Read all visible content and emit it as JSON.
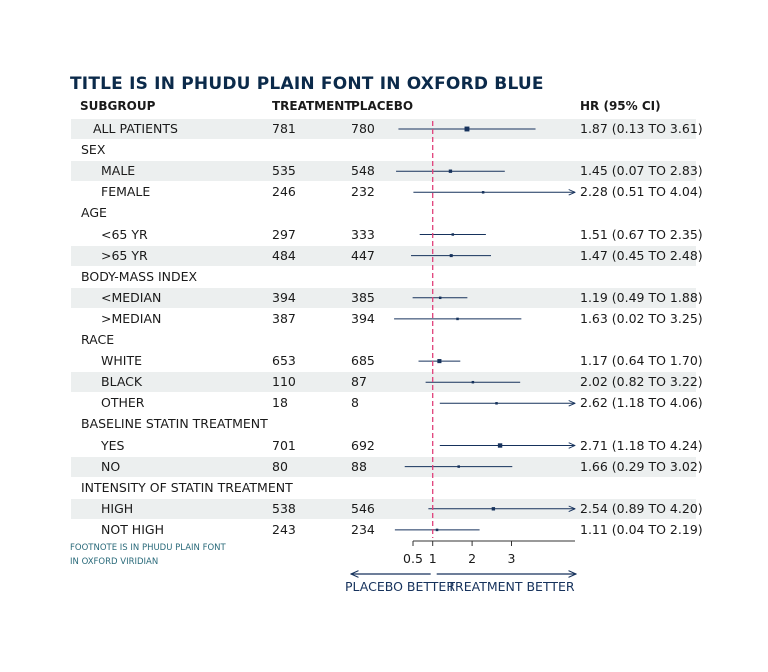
{
  "title": "TITLE IS IN PHUDU PLAIN FONT IN OXFORD BLUE",
  "headers": {
    "subgroup": "SUBGROUP",
    "treatment": "TREATMENT",
    "placebo": "PLACEBO",
    "hr": "HR (95% CI)"
  },
  "footnote": [
    "FOOTNOTE IS IN PHUDU PLAIN FONT",
    "IN OXFORD VIRIDIAN"
  ],
  "colors": {
    "title": "#0b2a4a",
    "line": "#16325c",
    "refline": "#e0407a",
    "band": "#ecefef",
    "footnote": "#2a6a7a"
  },
  "chart_data": {
    "type": "forest",
    "title": "TITLE IS IN PHUDU PLAIN FONT IN OXFORD BLUE",
    "xlabel_left": "PLACEBO BETTER",
    "xlabel_right": "TREATMENT BETTER",
    "x_ticks": [
      "0.5",
      "1",
      "2",
      "3"
    ],
    "x_tick_values": [
      0.5,
      1,
      2,
      3
    ],
    "xlim": [
      -0.5,
      4.0
    ],
    "reference_line": 1,
    "rows": [
      {
        "label": "ALL PATIENTS",
        "level": 1,
        "treatment": "781",
        "placebo": "780",
        "hr": 1.87,
        "lo": 0.13,
        "hi": 3.61,
        "hr_text": "1.87 (0.13 TO 3.61)",
        "shaded": true
      },
      {
        "label": "SEX",
        "level": 0,
        "header": true
      },
      {
        "label": "MALE",
        "level": 2,
        "treatment": "535",
        "placebo": "548",
        "hr": 1.45,
        "lo": 0.07,
        "hi": 2.83,
        "hr_text": "1.45 (0.07 TO 2.83)",
        "shaded": true
      },
      {
        "label": "FEMALE",
        "level": 2,
        "treatment": "246",
        "placebo": "232",
        "hr": 2.28,
        "lo": 0.51,
        "hi": 4.04,
        "hr_text": "2.28 (0.51 TO 4.04)",
        "shaded": false,
        "arrow": true
      },
      {
        "label": "AGE",
        "level": 0,
        "header": true
      },
      {
        "label": "<65 YR",
        "level": 2,
        "treatment": "297",
        "placebo": "333",
        "hr": 1.51,
        "lo": 0.67,
        "hi": 2.35,
        "hr_text": "1.51 (0.67 TO 2.35)",
        "shaded": false
      },
      {
        "label": ">65 YR",
        "level": 2,
        "treatment": "484",
        "placebo": "447",
        "hr": 1.47,
        "lo": 0.45,
        "hi": 2.48,
        "hr_text": "1.47 (0.45 TO 2.48)",
        "shaded": true
      },
      {
        "label": "BODY-MASS INDEX",
        "level": 0,
        "header": true
      },
      {
        "label": "<MEDIAN",
        "level": 2,
        "treatment": "394",
        "placebo": "385",
        "hr": 1.19,
        "lo": 0.49,
        "hi": 1.88,
        "hr_text": "1.19 (0.49 TO 1.88)",
        "shaded": true
      },
      {
        "label": ">MEDIAN",
        "level": 2,
        "treatment": "387",
        "placebo": "394",
        "hr": 1.63,
        "lo": 0.02,
        "hi": 3.25,
        "hr_text": "1.63 (0.02 TO 3.25)",
        "shaded": false
      },
      {
        "label": "RACE",
        "level": 0,
        "header": true
      },
      {
        "label": "WHITE",
        "level": 2,
        "treatment": "653",
        "placebo": "685",
        "hr": 1.17,
        "lo": 0.64,
        "hi": 1.7,
        "hr_text": "1.17 (0.64 TO 1.70)",
        "shaded": false
      },
      {
        "label": "BLACK",
        "level": 2,
        "treatment": "110",
        "placebo": "87",
        "hr": 2.02,
        "lo": 0.82,
        "hi": 3.22,
        "hr_text": "2.02 (0.82 TO 3.22)",
        "shaded": true
      },
      {
        "label": "OTHER",
        "level": 2,
        "treatment": "18",
        "placebo": "8",
        "hr": 2.62,
        "lo": 1.18,
        "hi": 4.06,
        "hr_text": "2.62 (1.18 TO 4.06)",
        "shaded": false,
        "arrow": true
      },
      {
        "label": "BASELINE STATIN TREATMENT",
        "level": 0,
        "header": true
      },
      {
        "label": "YES",
        "level": 2,
        "treatment": "701",
        "placebo": "692",
        "hr": 2.71,
        "lo": 1.18,
        "hi": 4.24,
        "hr_text": "2.71 (1.18 TO 4.24)",
        "shaded": false,
        "arrow": true
      },
      {
        "label": "NO",
        "level": 2,
        "treatment": "80",
        "placebo": "88",
        "hr": 1.66,
        "lo": 0.29,
        "hi": 3.02,
        "hr_text": "1.66 (0.29 TO 3.02)",
        "shaded": true
      },
      {
        "label": "INTENSITY OF STATIN TREATMENT",
        "level": 0,
        "header": true
      },
      {
        "label": "HIGH",
        "level": 2,
        "treatment": "538",
        "placebo": "546",
        "hr": 2.54,
        "lo": 0.89,
        "hi": 4.2,
        "hr_text": "2.54 (0.89 TO 4.20)",
        "shaded": true,
        "arrow": true
      },
      {
        "label": "NOT HIGH",
        "level": 2,
        "treatment": "243",
        "placebo": "234",
        "hr": 1.11,
        "lo": 0.04,
        "hi": 2.19,
        "hr_text": "1.11 (0.04 TO 2.19)",
        "shaded": false
      }
    ]
  }
}
